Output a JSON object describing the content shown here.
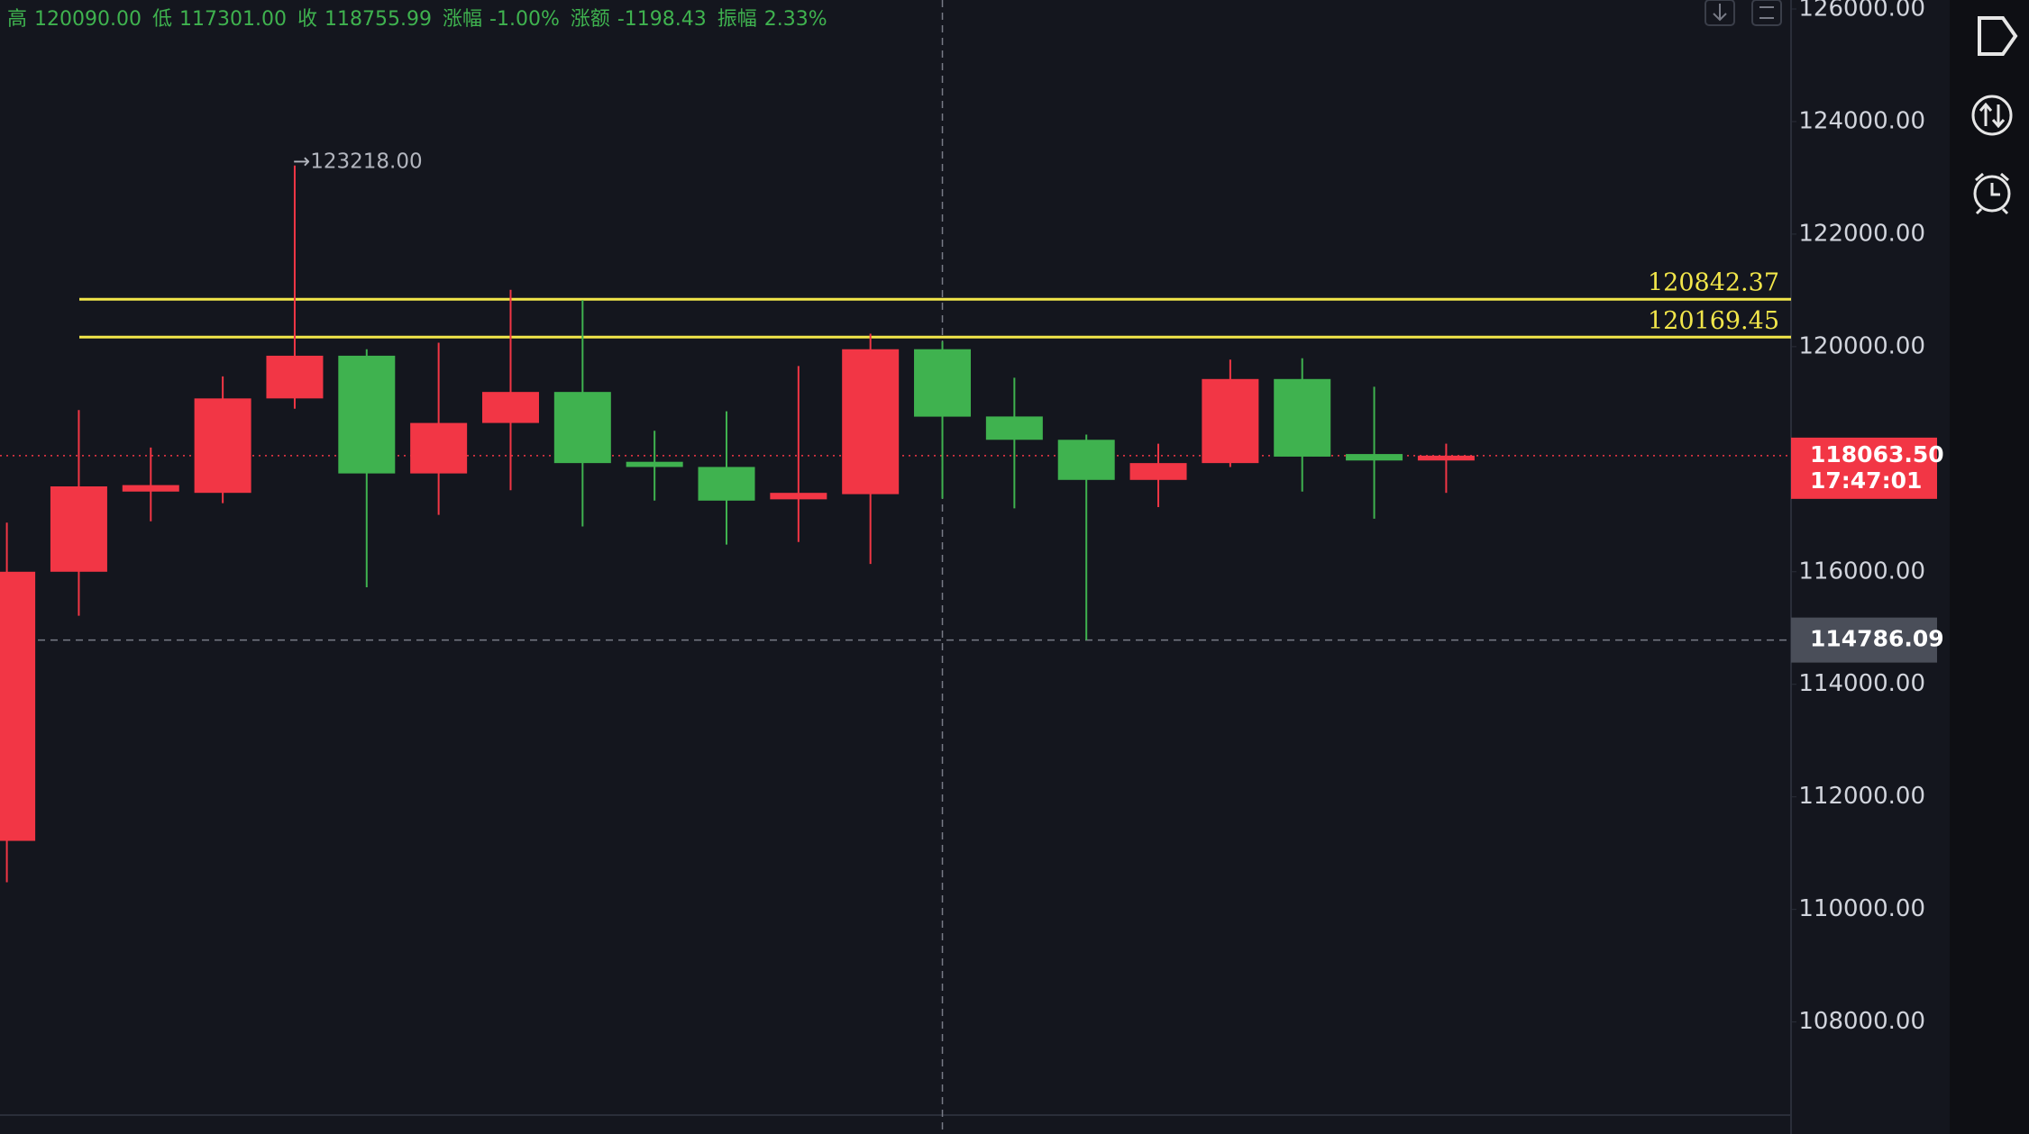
{
  "chart_data": {
    "type": "candlestick",
    "header": [
      {
        "label": "高",
        "value": "120090.00"
      },
      {
        "label": "低",
        "value": "117301.00"
      },
      {
        "label": "收",
        "value": "118755.99"
      },
      {
        "label": "涨幅",
        "value": "-1.00%"
      },
      {
        "label": "涨额",
        "value": "-1198.43"
      },
      {
        "label": "振幅",
        "value": "2.33%"
      }
    ],
    "open": [
      111218,
      116000,
      117425,
      117402,
      119080,
      119839,
      117747,
      118644,
      119195,
      117954,
      117862,
      117287,
      117379,
      119954.42,
      118759,
      118345,
      117632,
      117931,
      119425,
      118092,
      117977
    ],
    "high": [
      116873,
      118873,
      118207,
      119471,
      123218,
      119954,
      120069,
      121011,
      120828,
      118506,
      118851,
      119655,
      120230,
      120090,
      119448,
      118437,
      118276,
      119770,
      119793,
      119287,
      118276
    ],
    "low": [
      110482,
      115218,
      116897,
      117218,
      118897,
      115724,
      117011,
      117448,
      116805,
      117264,
      116483,
      116529,
      116138,
      117301,
      117126,
      114786.09,
      117149,
      117862,
      117425,
      116943,
      117402
    ],
    "close": [
      116000,
      117517,
      117540,
      119080,
      119839,
      117747,
      118644,
      119195,
      117931,
      117862,
      117264,
      117402,
      119954,
      118755.99,
      118345,
      117632,
      117931,
      119425,
      118046,
      117977,
      118063.5
    ],
    "up_color": "#f23645",
    "down_color": "#3fb24f",
    "high_label": "→123218.00",
    "ylim": [
      106345,
      126160
    ],
    "yticks": [
      {
        "value": 108000,
        "label": "108000.00"
      },
      {
        "value": 110000,
        "label": "110000.00"
      },
      {
        "value": 112000,
        "label": "112000.00"
      },
      {
        "value": 114000,
        "label": "114000.00"
      },
      {
        "value": 116000,
        "label": "116000.00"
      },
      {
        "value": 120000,
        "label": "120000.00"
      },
      {
        "value": 122000,
        "label": "122000.00"
      },
      {
        "value": 124000,
        "label": "124000.00"
      },
      {
        "value": 126000,
        "label": "126000.00"
      }
    ],
    "price_lines": [
      {
        "value": 120842.37,
        "color": "#f2e64a"
      },
      {
        "value": 120169.45,
        "color": "#f2e64a"
      }
    ],
    "last_price": {
      "value": 118063.5,
      "label": "118063.50",
      "countdown": "17:47:01"
    },
    "crosshair": {
      "index": 13,
      "value": 114786.09
    }
  }
}
